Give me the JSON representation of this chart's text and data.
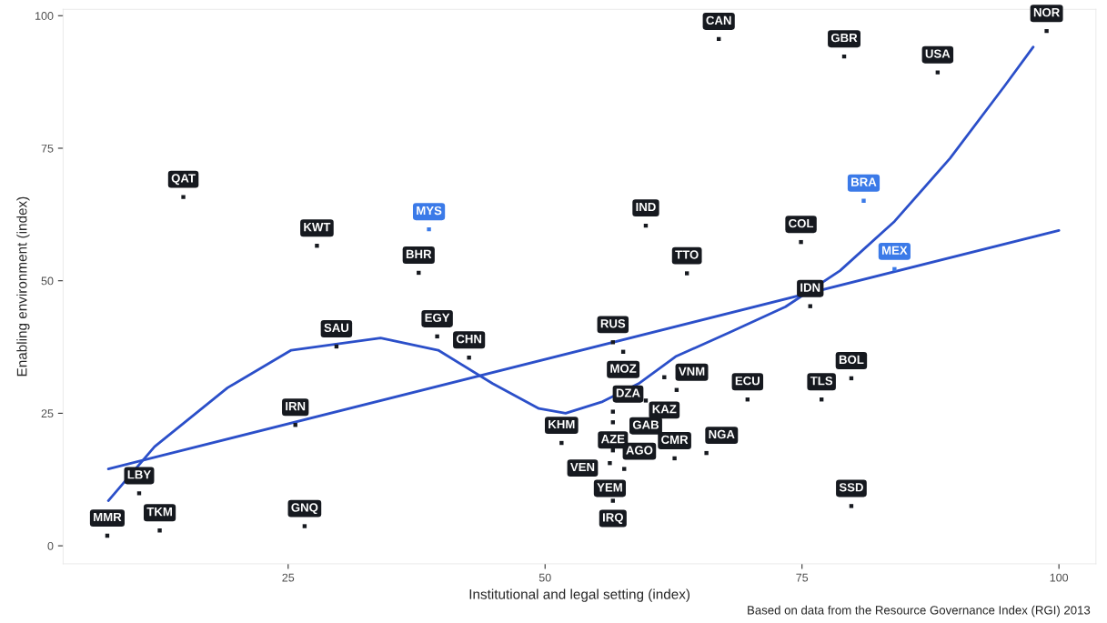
{
  "chart_data": {
    "type": "scatter",
    "xlabel": "Institutional and legal setting (index)",
    "ylabel": "Enabling environment (index)",
    "xlim": [
      3.1,
      103.6
    ],
    "ylim": [
      -3.4,
      101.2
    ],
    "xticks": [
      25,
      50,
      75,
      100
    ],
    "yticks": [
      0,
      25,
      50,
      75,
      100
    ],
    "grid": false,
    "legend": false,
    "series": [
      {
        "marker": "square",
        "x": [
          66.9,
          79.1,
          88.2,
          98.8,
          14.8,
          38.7,
          27.8,
          59.8,
          81.0,
          74.9,
          37.7,
          63.8,
          84.0,
          75.8,
          39.5,
          29.7,
          42.6,
          56.6,
          57.6,
          61.6,
          62.8,
          59.8,
          69.7,
          76.9,
          79.8,
          56.6,
          56.6,
          25.7,
          51.6,
          56.6,
          56.3,
          57.7,
          62.6,
          65.7,
          56.6,
          79.8,
          10.5,
          12.5,
          7.4,
          26.6
        ],
        "values": [
          95.6,
          92.3,
          89.3,
          97.1,
          65.8,
          59.7,
          56.6,
          60.4,
          65.1,
          57.3,
          51.5,
          51.4,
          52.2,
          45.2,
          39.5,
          37.6,
          35.5,
          38.4,
          36.6,
          31.8,
          29.4,
          27.4,
          27.6,
          27.6,
          31.6,
          25.3,
          23.3,
          22.8,
          19.4,
          18.0,
          15.6,
          14.5,
          16.5,
          17.5,
          8.5,
          7.5,
          9.9,
          2.9,
          1.9,
          3.7
        ],
        "colors": [
          "#16191f",
          "#16191f",
          "#16191f",
          "#16191f",
          "#16191f",
          "#3b7ae8",
          "#16191f",
          "#16191f",
          "#3b7ae8",
          "#16191f",
          "#16191f",
          "#16191f",
          "#3b7ae8",
          "#16191f",
          "#16191f",
          "#16191f",
          "#16191f",
          "#16191f",
          "#16191f",
          "#16191f",
          "#16191f",
          "#16191f",
          "#16191f",
          "#16191f",
          "#16191f",
          "#16191f",
          "#16191f",
          "#16191f",
          "#16191f",
          "#16191f",
          "#16191f",
          "#16191f",
          "#16191f",
          "#16191f",
          "#16191f",
          "#16191f",
          "#16191f",
          "#16191f",
          "#16191f",
          "#16191f"
        ]
      },
      {
        "type": "line",
        "color": "#2b4fc9",
        "x": [
          7.5,
          100
        ],
        "values": [
          14.5,
          59.5
        ]
      },
      {
        "type": "line",
        "color": "#2b4fc9",
        "x": [
          7.5,
          12,
          19.1,
          25.3,
          34.0,
          39.6,
          44.9,
          49.4,
          52.0,
          55.6,
          59.1,
          62.7,
          68.0,
          73.4,
          78.7,
          84.0,
          89.4,
          94.7,
          97.5
        ],
        "values": [
          8.5,
          18.7,
          29.8,
          36.9,
          39.2,
          36.9,
          30.6,
          25.9,
          25.0,
          27.2,
          30.6,
          35.7,
          40.3,
          45.1,
          51.9,
          61.2,
          73.1,
          86.7,
          94.1
        ]
      }
    ],
    "annotations": [
      {
        "text": "CAN",
        "x": 66.9,
        "y": 95.6
      },
      {
        "text": "GBR",
        "x": 79.1,
        "y": 92.3
      },
      {
        "text": "USA",
        "x": 88.2,
        "y": 89.3
      },
      {
        "text": "NOR",
        "x": 98.8,
        "y": 97.1
      },
      {
        "text": "QAT",
        "x": 14.8,
        "y": 65.8
      },
      {
        "text": "MYS",
        "x": 38.7,
        "y": 59.7
      },
      {
        "text": "KWT",
        "x": 27.8,
        "y": 56.6
      },
      {
        "text": "IND",
        "x": 59.8,
        "y": 60.4
      },
      {
        "text": "BRA",
        "x": 81.0,
        "y": 65.1
      },
      {
        "text": "COL",
        "x": 74.9,
        "y": 57.3
      },
      {
        "text": "BHR",
        "x": 37.7,
        "y": 51.5
      },
      {
        "text": "TTO",
        "x": 63.8,
        "y": 51.4
      },
      {
        "text": "MEX",
        "x": 84.0,
        "y": 52.2
      },
      {
        "text": "IDN",
        "x": 75.8,
        "y": 45.2
      },
      {
        "text": "EGY",
        "x": 39.5,
        "y": 39.5
      },
      {
        "text": "SAU",
        "x": 29.7,
        "y": 37.6
      },
      {
        "text": "CHN",
        "x": 42.6,
        "y": 35.5
      },
      {
        "text": "RUS",
        "x": 56.6,
        "y": 38.4
      },
      {
        "text": "MOZ",
        "x": 57.6,
        "y": 36.6
      },
      {
        "text": "KAZ",
        "x": 61.6,
        "y": 31.8
      },
      {
        "text": "VNM",
        "x": 62.8,
        "y": 29.4
      },
      {
        "text": "GAB",
        "x": 59.8,
        "y": 27.4
      },
      {
        "text": "ECU",
        "x": 69.7,
        "y": 27.6
      },
      {
        "text": "TLS",
        "x": 76.9,
        "y": 27.6
      },
      {
        "text": "BOL",
        "x": 79.8,
        "y": 31.6
      },
      {
        "text": "DZA",
        "x": 56.6,
        "y": 25.3
      },
      {
        "text": "AZE",
        "x": 56.6,
        "y": 23.3
      },
      {
        "text": "IRN",
        "x": 25.7,
        "y": 22.8
      },
      {
        "text": "KHM",
        "x": 51.6,
        "y": 19.4
      },
      {
        "text": "VEN",
        "x": 56.6,
        "y": 18.0
      },
      {
        "text": "YEM",
        "x": 56.3,
        "y": 15.6
      },
      {
        "text": "AGO",
        "x": 57.7,
        "y": 14.5
      },
      {
        "text": "CMR",
        "x": 62.6,
        "y": 16.5
      },
      {
        "text": "NGA",
        "x": 65.7,
        "y": 17.5
      },
      {
        "text": "IRQ",
        "x": 56.6,
        "y": 8.5
      },
      {
        "text": "SSD",
        "x": 79.8,
        "y": 7.5
      },
      {
        "text": "LBY",
        "x": 10.5,
        "y": 9.9
      },
      {
        "text": "TKM",
        "x": 12.5,
        "y": 2.9
      },
      {
        "text": "MMR",
        "x": 7.4,
        "y": 1.9
      },
      {
        "text": "GNQ",
        "x": 26.6,
        "y": 3.7
      },
      "Based on data from the Resource Governance Index (RGI) 2013"
    ]
  }
}
